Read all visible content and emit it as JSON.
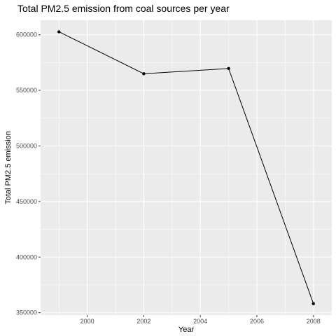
{
  "chart_data": {
    "type": "line",
    "title": "Total PM2.5 emission from coal sources per year",
    "xlabel": "Year",
    "ylabel": "Total PM2.5 emission",
    "x": [
      1999,
      2002,
      2005,
      2008
    ],
    "series": [
      {
        "values": [
          602624,
          564940,
          569655,
          358084
        ]
      }
    ],
    "xlim": [
      1998.35,
      2008.65
    ],
    "ylim": [
      347900,
      613000
    ],
    "xticks": [
      2000,
      2002,
      2004,
      2006,
      2008
    ],
    "xtick_labels": [
      "2000",
      "2002",
      "2004",
      "2006",
      "2008"
    ],
    "yticks": [
      350000,
      400000,
      450000,
      500000,
      550000,
      600000
    ],
    "ytick_labels": [
      "350000",
      "400000",
      "450000",
      "500000",
      "550000",
      "600000"
    ],
    "grid": true,
    "legend": "none",
    "colors": {
      "panel_background": "#ebebeb",
      "grid_line": "#ffffff",
      "series_line": "#000000",
      "point": "#000000",
      "tick_text": "#4d4d4d",
      "tick_mark": "#333333"
    }
  }
}
